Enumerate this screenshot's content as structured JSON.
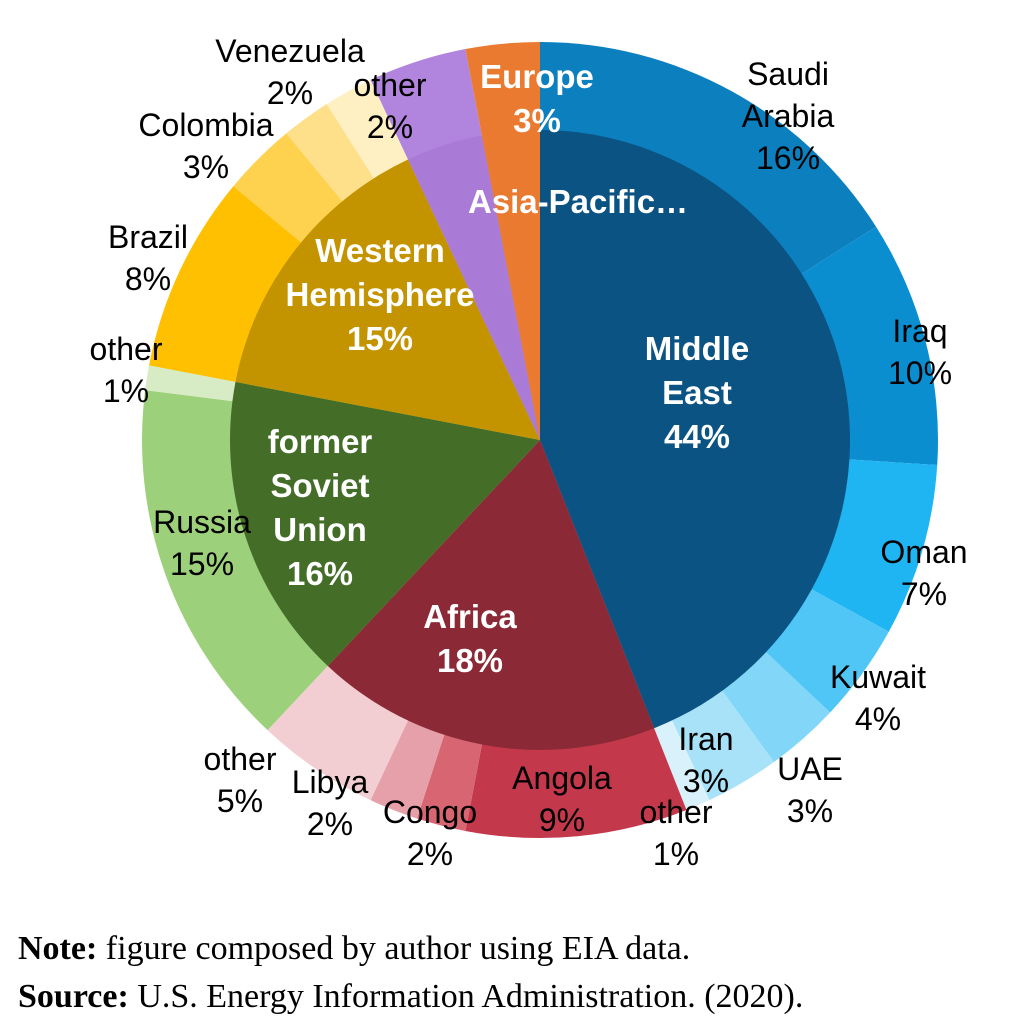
{
  "chart_data": {
    "type": "pie",
    "subtype": "two-level donut (sunburst)",
    "inner_ring": [
      {
        "label": "Middle East",
        "value": 44,
        "value_text": "44%",
        "color": "#0b5383"
      },
      {
        "label": "Africa",
        "value": 18,
        "value_text": "18%",
        "color": "#8b2a36"
      },
      {
        "label": "former Soviet Union",
        "value": 16,
        "value_text": "16%",
        "color": "#446e28"
      },
      {
        "label": "Western Hemisphere",
        "value": 15,
        "value_text": "15%",
        "color": "#c39400"
      },
      {
        "label": "Asia-Pacific…",
        "value": 4,
        "value_text": "",
        "color": "#a97bd6"
      },
      {
        "label": "Europe",
        "value": 3,
        "value_text": "3%",
        "color": "#ea7a30"
      }
    ],
    "outer_ring": [
      {
        "label": "Saudi Arabia",
        "value": 16,
        "value_text": "16%",
        "color": "#0c7fbe"
      },
      {
        "label": "Iraq",
        "value": 10,
        "value_text": "10%",
        "color": "#0b8ed0"
      },
      {
        "label": "Oman",
        "value": 7,
        "value_text": "7%",
        "color": "#1fb4f2"
      },
      {
        "label": "Kuwait",
        "value": 4,
        "value_text": "4%",
        "color": "#4fc6f5"
      },
      {
        "label": "UAE",
        "value": 3,
        "value_text": "3%",
        "color": "#82d6f7"
      },
      {
        "label": "Iran",
        "value": 3,
        "value_text": "3%",
        "color": "#a8e2f8"
      },
      {
        "label": "other",
        "value": 1,
        "value_text": "1%",
        "color": "#d8f1fb"
      },
      {
        "label": "Angola",
        "value": 9,
        "value_text": "9%",
        "color": "#c3394b"
      },
      {
        "label": "Congo",
        "value": 2,
        "value_text": "2%",
        "color": "#d86572"
      },
      {
        "label": "Libya",
        "value": 2,
        "value_text": "2%",
        "color": "#e6a0a9"
      },
      {
        "label": "other",
        "value": 5,
        "value_text": "5%",
        "color": "#f2ced3"
      },
      {
        "label": "Russia",
        "value": 15,
        "value_text": "15%",
        "color": "#9dd07a"
      },
      {
        "label": "other",
        "value": 1,
        "value_text": "1%",
        "color": "#d7ecc5"
      },
      {
        "label": "Brazil",
        "value": 8,
        "value_text": "8%",
        "color": "#fec000"
      },
      {
        "label": "Colombia",
        "value": 3,
        "value_text": "3%",
        "color": "#fed24e"
      },
      {
        "label": "Venezuela",
        "value": 2,
        "value_text": "2%",
        "color": "#fee08a"
      },
      {
        "label": "other",
        "value": 2,
        "value_text": "2%",
        "color": "#fff0c4"
      },
      {
        "label": "Asia-Pacific",
        "value": 4,
        "value_text": "",
        "color": "#b184de"
      },
      {
        "label": "Europe",
        "value": 3,
        "value_text": "",
        "color": "#ea7a30"
      }
    ]
  },
  "notes": {
    "note_label": "Note:",
    "note_text": " figure composed by author using EIA data.",
    "source_label": "Source:",
    "source_text": " U.S. Energy Information Administration. (2020)."
  }
}
